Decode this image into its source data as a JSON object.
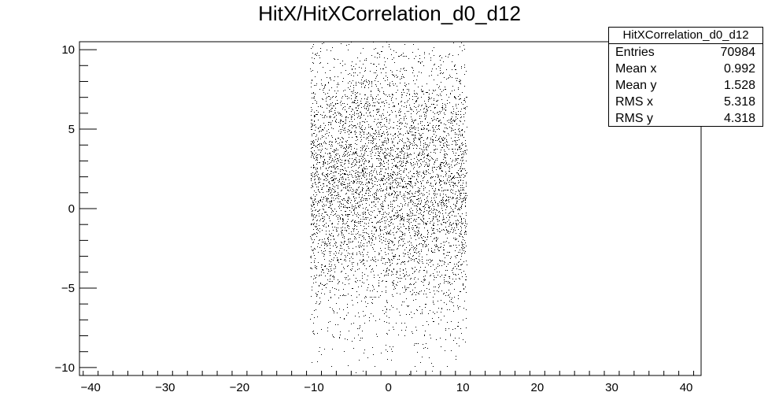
{
  "title": "HitX/HitXCorrelation_d0_d12",
  "stats": {
    "name": "HitXCorrelation_d0_d12",
    "rows": [
      {
        "key": "Entries",
        "value": "70984"
      },
      {
        "key": "Mean x",
        "value": "0.992"
      },
      {
        "key": "Mean y",
        "value": "1.528"
      },
      {
        "key": "RMS x",
        "value": "5.318"
      },
      {
        "key": "RMS y",
        "value": "4.318"
      }
    ]
  },
  "chart_data": {
    "type": "scatter",
    "title": "HitX/HitXCorrelation_d0_d12",
    "xlabel": "",
    "ylabel": "",
    "xlim": [
      -41.5,
      42
    ],
    "ylim": [
      -10.5,
      10.5
    ],
    "x_ticks": [
      -40,
      -30,
      -20,
      -10,
      0,
      10,
      20,
      30,
      40
    ],
    "x_tick_labels": [
      "−40",
      "−30",
      "−20",
      "−10",
      "0",
      "10",
      "20",
      "30",
      "40"
    ],
    "y_ticks": [
      -10,
      -5,
      0,
      5,
      10
    ],
    "y_tick_labels": [
      "−10",
      "−5",
      "0",
      "5",
      "10"
    ],
    "grid": false,
    "x_range_filled": [
      -10.5,
      10.5
    ],
    "entries": 70984,
    "mean_x": 0.992,
    "mean_y": 1.528,
    "rms_x": 5.318,
    "rms_y": 4.318,
    "marker_color": "#000000"
  }
}
